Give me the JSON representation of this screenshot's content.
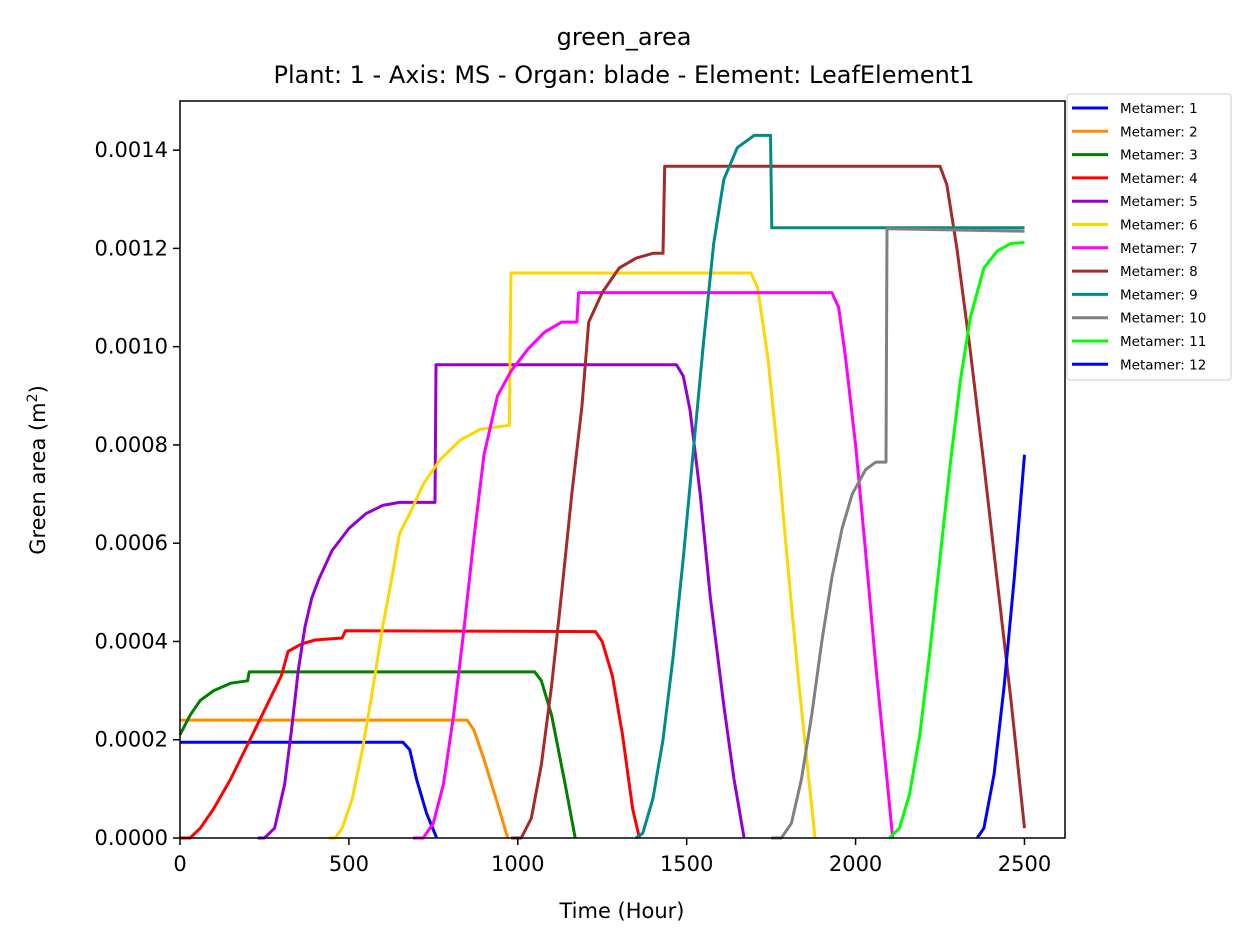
{
  "chart_data": {
    "type": "line",
    "title": "green_area",
    "subtitle": "Plant: 1 - Axis: MS - Organ: blade - Element: LeafElement1",
    "xlabel": "Time (Hour)",
    "ylabel_main": "Green area (m",
    "ylabel_sup": "2",
    "ylabel_close": ")",
    "xlim": [
      0,
      2620
    ],
    "ylim": [
      0,
      0.0015
    ],
    "xticks": [
      0,
      500,
      1000,
      1500,
      2000,
      2500
    ],
    "xtick_labels": [
      "0",
      "500",
      "1000",
      "1500",
      "2000",
      "2500"
    ],
    "yticks": [
      0,
      0.0002,
      0.0004,
      0.0006,
      0.0008,
      0.001,
      0.0012,
      0.0014
    ],
    "ytick_labels": [
      "0.0000",
      "0.0002",
      "0.0004",
      "0.0006",
      "0.0008",
      "0.0010",
      "0.0012",
      "0.0014"
    ],
    "grid": false,
    "legend_position": "outside-top-right",
    "series": [
      {
        "name": "Metamer: 1",
        "color": "#0000ff",
        "points": [
          [
            0,
            0.000195
          ],
          [
            660,
            0.000195
          ],
          [
            680,
            0.00018
          ],
          [
            700,
            0.00012
          ],
          [
            730,
            5e-05
          ],
          [
            760,
            0.0
          ]
        ]
      },
      {
        "name": "Metamer: 2",
        "color": "#ff8c00",
        "points": [
          [
            0,
            0.00024
          ],
          [
            850,
            0.00024
          ],
          [
            870,
            0.00022
          ],
          [
            900,
            0.00016
          ],
          [
            940,
            7e-05
          ],
          [
            970,
            0.0
          ]
        ]
      },
      {
        "name": "Metamer: 3",
        "color": "#008000",
        "points": [
          [
            0,
            0.00021
          ],
          [
            30,
            0.00025
          ],
          [
            60,
            0.00028
          ],
          [
            100,
            0.0003
          ],
          [
            150,
            0.000315
          ],
          [
            200,
            0.00032
          ],
          [
            205,
            0.000338
          ],
          [
            1050,
            0.000338
          ],
          [
            1070,
            0.00032
          ],
          [
            1100,
            0.00025
          ],
          [
            1140,
            0.00011
          ],
          [
            1170,
            0.0
          ]
        ]
      },
      {
        "name": "Metamer: 4",
        "color": "#ff0000",
        "points": [
          [
            0,
            0.0
          ],
          [
            30,
            0.0
          ],
          [
            60,
            2e-05
          ],
          [
            100,
            6e-05
          ],
          [
            150,
            0.00012
          ],
          [
            200,
            0.00019
          ],
          [
            250,
            0.00026
          ],
          [
            300,
            0.00033
          ],
          [
            320,
            0.00038
          ],
          [
            360,
            0.000395
          ],
          [
            400,
            0.000403
          ],
          [
            480,
            0.000407
          ],
          [
            490,
            0.000422
          ],
          [
            1230,
            0.00042
          ],
          [
            1250,
            0.0004
          ],
          [
            1280,
            0.00033
          ],
          [
            1310,
            0.00021
          ],
          [
            1340,
            6e-05
          ],
          [
            1360,
            0.0
          ]
        ]
      },
      {
        "name": "Metamer: 5",
        "color": "#9400d3",
        "points": [
          [
            230,
            0.0
          ],
          [
            250,
            0.0
          ],
          [
            280,
            2e-05
          ],
          [
            310,
            0.00011
          ],
          [
            330,
            0.00022
          ],
          [
            350,
            0.00034
          ],
          [
            370,
            0.00043
          ],
          [
            390,
            0.000488
          ],
          [
            410,
            0.000525
          ],
          [
            450,
            0.000585
          ],
          [
            500,
            0.00063
          ],
          [
            550,
            0.00066
          ],
          [
            600,
            0.000677
          ],
          [
            650,
            0.000683
          ],
          [
            755,
            0.000683
          ],
          [
            758,
            0.000963
          ],
          [
            1470,
            0.000963
          ],
          [
            1490,
            0.00094
          ],
          [
            1510,
            0.00087
          ],
          [
            1540,
            0.0007
          ],
          [
            1570,
            0.00049
          ],
          [
            1610,
            0.00027
          ],
          [
            1640,
            0.00012
          ],
          [
            1670,
            0.0
          ]
        ]
      },
      {
        "name": "Metamer: 6",
        "color": "#ffd700",
        "points": [
          [
            440,
            0.0
          ],
          [
            460,
            0.0
          ],
          [
            480,
            2e-05
          ],
          [
            510,
            8e-05
          ],
          [
            540,
            0.00018
          ],
          [
            570,
            0.0003
          ],
          [
            600,
            0.00043
          ],
          [
            630,
            0.00054
          ],
          [
            650,
            0.00062
          ],
          [
            680,
            0.00066
          ],
          [
            720,
            0.00072
          ],
          [
            770,
            0.00077
          ],
          [
            830,
            0.00081
          ],
          [
            890,
            0.000832
          ],
          [
            975,
            0.00084
          ],
          [
            980,
            0.00115
          ],
          [
            1690,
            0.00115
          ],
          [
            1710,
            0.00112
          ],
          [
            1740,
            0.00098
          ],
          [
            1770,
            0.00078
          ],
          [
            1800,
            0.00055
          ],
          [
            1830,
            0.00033
          ],
          [
            1860,
            0.00013
          ],
          [
            1880,
            0.0
          ]
        ]
      },
      {
        "name": "Metamer: 7",
        "color": "#ff00ff",
        "points": [
          [
            690,
            0.0
          ],
          [
            720,
            0.0
          ],
          [
            750,
            3e-05
          ],
          [
            780,
            0.00011
          ],
          [
            810,
            0.00025
          ],
          [
            840,
            0.00042
          ],
          [
            870,
            0.00061
          ],
          [
            900,
            0.00078
          ],
          [
            940,
            0.0009
          ],
          [
            980,
            0.00095
          ],
          [
            1030,
            0.000995
          ],
          [
            1080,
            0.00103
          ],
          [
            1130,
            0.00105
          ],
          [
            1175,
            0.00105
          ],
          [
            1180,
            0.00111
          ],
          [
            1930,
            0.00111
          ],
          [
            1950,
            0.00108
          ],
          [
            1970,
            0.00098
          ],
          [
            2000,
            0.0008
          ],
          [
            2030,
            0.00058
          ],
          [
            2060,
            0.00035
          ],
          [
            2090,
            0.00014
          ],
          [
            2110,
            0.0
          ]
        ]
      },
      {
        "name": "Metamer: 8",
        "color": "#a52a2a",
        "points": [
          [
            980,
            0.0
          ],
          [
            1010,
            0.0
          ],
          [
            1040,
            4e-05
          ],
          [
            1070,
            0.00015
          ],
          [
            1100,
            0.00031
          ],
          [
            1130,
            0.0005
          ],
          [
            1160,
            0.0007
          ],
          [
            1190,
            0.00088
          ],
          [
            1210,
            0.00105
          ],
          [
            1250,
            0.00111
          ],
          [
            1300,
            0.00116
          ],
          [
            1350,
            0.00118
          ],
          [
            1400,
            0.00119
          ],
          [
            1430,
            0.00119
          ],
          [
            1435,
            0.001367
          ],
          [
            2250,
            0.001367
          ],
          [
            2270,
            0.00133
          ],
          [
            2300,
            0.0012
          ],
          [
            2340,
            0.00099
          ],
          [
            2380,
            0.00076
          ],
          [
            2420,
            0.00052
          ],
          [
            2460,
            0.00028
          ],
          [
            2500,
            2e-05
          ]
        ]
      },
      {
        "name": "Metamer: 9",
        "color": "#008b8b",
        "points": [
          [
            1350,
            0.0
          ],
          [
            1370,
            1e-05
          ],
          [
            1400,
            8e-05
          ],
          [
            1430,
            0.0002
          ],
          [
            1460,
            0.00037
          ],
          [
            1490,
            0.00057
          ],
          [
            1520,
            0.00079
          ],
          [
            1550,
            0.00101
          ],
          [
            1580,
            0.00121
          ],
          [
            1610,
            0.00134
          ],
          [
            1650,
            0.001405
          ],
          [
            1700,
            0.00143
          ],
          [
            1748,
            0.00143
          ],
          [
            1752,
            0.001242
          ],
          [
            2500,
            0.001242
          ]
        ]
      },
      {
        "name": "Metamer: 10",
        "color": "#808080",
        "points": [
          [
            1750,
            0.0
          ],
          [
            1780,
            0.0
          ],
          [
            1810,
            3e-05
          ],
          [
            1840,
            0.00012
          ],
          [
            1870,
            0.00025
          ],
          [
            1900,
            0.0004
          ],
          [
            1930,
            0.00053
          ],
          [
            1960,
            0.00063
          ],
          [
            1990,
            0.0007
          ],
          [
            2030,
            0.00075
          ],
          [
            2060,
            0.000765
          ],
          [
            2090,
            0.000765
          ],
          [
            2093,
            0.00124
          ],
          [
            2500,
            0.001235
          ]
        ]
      },
      {
        "name": "Metamer: 11",
        "color": "#00ff00",
        "points": [
          [
            2100,
            0.0
          ],
          [
            2130,
            2e-05
          ],
          [
            2160,
            9e-05
          ],
          [
            2190,
            0.00021
          ],
          [
            2220,
            0.00038
          ],
          [
            2250,
            0.00057
          ],
          [
            2280,
            0.00076
          ],
          [
            2310,
            0.00093
          ],
          [
            2340,
            0.00106
          ],
          [
            2380,
            0.00116
          ],
          [
            2420,
            0.001195
          ],
          [
            2460,
            0.00121
          ],
          [
            2500,
            0.001212
          ]
        ]
      },
      {
        "name": "Metamer: 12",
        "color": "#0000ff",
        "points": [
          [
            2360,
            0.0
          ],
          [
            2380,
            2e-05
          ],
          [
            2410,
            0.00013
          ],
          [
            2440,
            0.00031
          ],
          [
            2470,
            0.00053
          ],
          [
            2500,
            0.00078
          ]
        ]
      }
    ]
  }
}
